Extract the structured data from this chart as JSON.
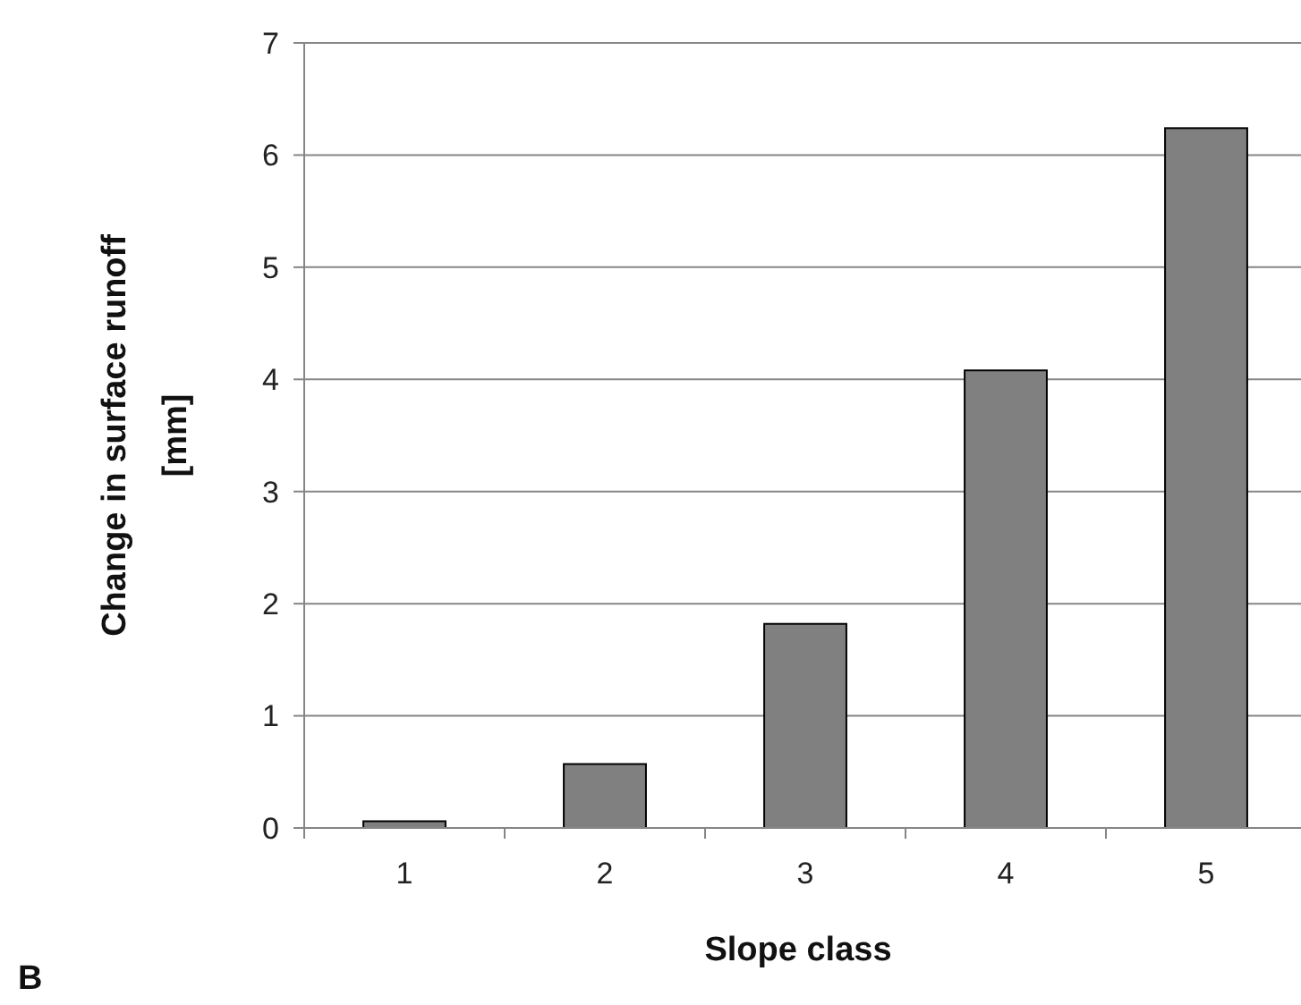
{
  "chart_data": {
    "type": "bar",
    "xlabel": "Slope class",
    "ylabel": "Change in surface runoff [mm]",
    "categories": [
      "1",
      "2",
      "3",
      "4",
      "5"
    ],
    "values": [
      0.06,
      0.57,
      1.82,
      4.08,
      6.24
    ],
    "color": "#808080",
    "ylim": [
      0,
      7
    ],
    "yticks": [
      0,
      1,
      2,
      3,
      4,
      5,
      6,
      7
    ],
    "grid": "y",
    "annotations": [
      "B"
    ]
  }
}
